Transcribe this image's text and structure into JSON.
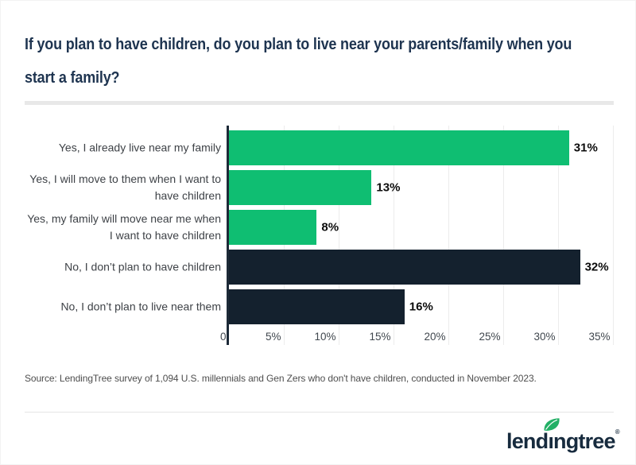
{
  "header": {
    "title_lines": [
      "If you plan to have children, do you plan to live near your parents/family when you",
      "start a family?"
    ]
  },
  "chart_data": {
    "type": "bar",
    "orientation": "horizontal",
    "title": "If you plan to have children, do you plan to live near your parents/family when you start a family?",
    "categories": [
      "Yes, I already live near my family",
      "Yes, I will move to them when I want to\nhave children",
      "Yes, my family will move near me when\nI want to have children",
      "No, I don’t plan to have children",
      "No, I don’t plan to live near them"
    ],
    "values": [
      31,
      13,
      8,
      32,
      16
    ],
    "value_labels": [
      "31%",
      "13%",
      "8%",
      "32%",
      "16%"
    ],
    "bar_colors": [
      "#0fbe72",
      "#0fbe72",
      "#0fbe72",
      "#14212e",
      "#14212e"
    ],
    "x_ticks": [
      "0",
      "5%",
      "10%",
      "15%",
      "20%",
      "25%",
      "30%",
      "35%"
    ],
    "x_tick_values": [
      0,
      5,
      10,
      15,
      20,
      25,
      30,
      35
    ],
    "xlim": [
      0,
      36.5
    ],
    "grid": true,
    "accent_green": "#0fbe72",
    "accent_navy": "#14212e"
  },
  "source": {
    "text": "Source: LendingTree survey of 1,094 U.S. millennials and Gen Zers who don't have children, conducted in November 2023."
  },
  "footer": {
    "logo": {
      "brand": "lendingtree",
      "text_before_leaf": "lend",
      "dotless_i": "ı",
      "text_after_leaf": "ngtree",
      "registered_mark": "®",
      "leaf_color": "#23b066",
      "navy": "#172b3e"
    }
  }
}
